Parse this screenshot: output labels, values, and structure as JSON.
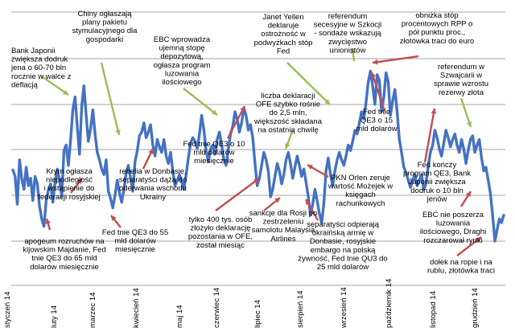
{
  "chart_data": {
    "type": "line",
    "title": "",
    "xlabel": "",
    "ylabel": "",
    "grid": "horizontal",
    "legend": "none",
    "x_ticks": [
      "styczeń 14",
      "luty 14",
      "marzec 14",
      "kwiecień 14",
      "maj 14",
      "czerwiec 14",
      "lipiec 14",
      "sierpień 14",
      "wrzesień 14",
      "październik 14",
      "listopad 14",
      "grudzień 14"
    ],
    "series": [
      {
        "color": "#4472c4",
        "values": [
          38.5,
          35,
          20,
          44,
          34,
          28,
          40,
          30,
          34,
          22,
          35,
          31,
          19,
          12,
          8,
          22,
          28,
          31,
          21,
          32,
          39,
          33,
          24,
          49,
          52,
          41,
          55,
          71,
          78,
          62,
          47,
          73,
          84,
          68,
          54,
          61,
          71,
          58,
          48,
          44,
          39,
          36,
          44,
          27,
          23,
          18,
          25,
          33,
          26,
          21,
          28,
          37,
          41,
          34,
          27,
          43,
          49,
          57,
          59,
          64,
          56,
          59,
          63,
          52,
          46,
          55,
          51,
          48,
          55,
          46,
          42,
          48,
          38,
          30,
          33,
          36,
          32,
          28,
          36,
          45,
          53,
          56,
          54,
          50,
          58,
          68,
          60,
          49,
          43,
          50,
          52,
          47,
          55,
          59,
          52,
          44,
          41,
          50,
          58,
          62,
          70,
          66,
          59,
          64,
          72,
          68,
          60,
          63,
          56,
          42,
          30,
          34,
          41,
          48,
          44,
          38,
          24,
          28,
          35,
          42,
          38,
          31,
          36,
          44,
          48,
          42,
          34,
          40,
          46,
          41,
          35,
          39,
          32,
          24,
          14,
          20,
          28,
          22,
          15,
          10,
          20,
          38,
          45,
          36,
          30,
          38,
          44,
          48,
          44,
          41,
          46,
          52,
          49,
          54,
          60,
          58,
          64,
          70,
          66,
          75,
          86,
          92,
          84,
          74,
          90,
          87,
          70,
          78,
          91,
          86,
          68,
          76,
          82,
          70,
          55,
          48,
          40,
          37,
          33,
          29,
          33,
          36,
          30,
          33,
          36,
          28,
          31,
          41,
          48,
          52,
          60,
          56,
          50,
          46,
          53,
          60,
          56,
          51,
          55,
          58,
          52,
          48,
          55,
          50,
          42,
          49,
          55,
          57,
          48,
          52,
          55,
          45,
          38,
          40,
          33,
          26,
          14,
          0,
          6,
          12,
          10,
          14
        ]
      }
    ],
    "annotations": [
      {
        "lines": [
          "Bank Japonii",
          "zwiększa dodruk",
          "jena o 60-70 bln",
          "rocznie w walce z",
          "deflacją"
        ]
      },
      {
        "lines": [
          "Chiny ogłaszają",
          "plany pakietu",
          "stymulacyjnego dla",
          "gospodarki"
        ]
      },
      {
        "lines": [
          "EBC wprowadza",
          "ujemną stopę",
          "depozytową,",
          "ogłasza program",
          "luzowania",
          "ilościowego"
        ]
      },
      {
        "lines": [
          "Janet Yellen",
          "deklaruje",
          "ostrożność w",
          "podwyżkach stóp",
          "Fed"
        ]
      },
      {
        "lines": [
          "referendum",
          "secesyjne w Szkocji",
          "- sondaże wskazują",
          "zwycięstwo",
          "unionistów"
        ]
      },
      {
        "lines": [
          "obniżka stóp",
          "procentowych RPP o",
          "pół punktu proc.,",
          "złotówka traci do euro"
        ]
      },
      {
        "lines": [
          "referendum w",
          "Szwajcarii w",
          "sprawie wzrostu",
          "rezerwy złota"
        ]
      },
      {
        "lines": [
          "liczba deklaracji",
          "OFE szybko rośnie",
          "do 2,5 mln,",
          "większość składana",
          "na ostatnią chwilę"
        ]
      },
      {
        "lines": [
          "Fed tnie",
          "QE3 o 15",
          "mld dolarów"
        ]
      },
      {
        "lines": [
          "Fed tnie QE3 o 10",
          "mld dolarów",
          "miesięcznie"
        ]
      },
      {
        "lines": [
          "Krym ogłasza",
          "niepodległość",
          "i wstąpienie do",
          "federacji rosyjskiej"
        ]
      },
      {
        "lines": [
          "rebelia w Donbasie,",
          "separatyści dążą do",
          "oderwania wschodu",
          "Ukrainy"
        ]
      },
      {
        "lines": [
          "Fed końcży",
          "program QE3, Bank",
          "Japonii zwiększa",
          "dodruk o 10 bln",
          "jenów"
        ]
      },
      {
        "lines": [
          "PKN Orlen zeruje",
          "wartość Możejek w",
          "księgach",
          "rachunkowych"
        ]
      },
      {
        "lines": [
          "sankcje dla Rosji po",
          "zestrzeleniu",
          "samolotu Malaysia",
          "Airlines"
        ]
      },
      {
        "lines": [
          "tylko 400 tys. osób",
          "złożyło deklarację",
          "pozostania w OFE,",
          "został miesiąc"
        ]
      },
      {
        "lines": [
          "EBC nie poszerza",
          "luzowania",
          "ilościowego, Draghi",
          "rozczarował rynki"
        ]
      },
      {
        "lines": [
          "Fed tnie QE3 do 55",
          "mld dolarów",
          "miesięcznie"
        ]
      },
      {
        "lines": [
          "separatyści odpierają",
          "ukraińską armię w",
          "Donbasie, rosyjskie",
          "embargo na polską",
          "żywność, Fed tnie QU3 do",
          "25 mld dolarów"
        ]
      },
      {
        "lines": [
          "apogeum rozruchów na",
          "kijowskim Majdanie, Fed",
          "tnie QE3 do 65 mld",
          "dolarów miesięcznie"
        ]
      },
      {
        "lines": [
          "dołek na ropie i na",
          "rublu, złotówka traci"
        ]
      }
    ]
  }
}
